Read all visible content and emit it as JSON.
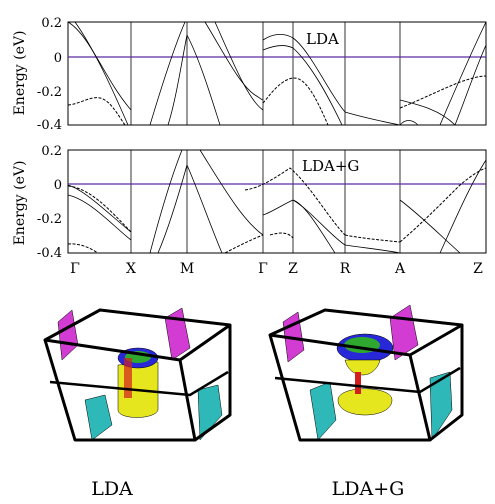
{
  "panels": [
    {
      "label": "LDA",
      "ylabel": "Energy (eV)",
      "yticks": [
        "0.2",
        "0",
        "-0.2",
        "-0.4"
      ]
    },
    {
      "label": "LDA+G",
      "ylabel": "Energy (eV)",
      "yticks": [
        "0.2",
        "0",
        "-0.2",
        "-0.4"
      ]
    }
  ],
  "kpath": [
    "Γ",
    "X",
    "M",
    "Γ",
    "Z",
    "R",
    "A",
    "Z"
  ],
  "fermi_color": "#5a2ca0",
  "fermi_surfaces": [
    {
      "caption": "LDA"
    },
    {
      "caption": "LDA+G"
    }
  ],
  "colors": {
    "magenta": "#d23cd2",
    "cyan": "#2fb8b8",
    "yellow": "#e6e61e",
    "blue": "#2828d8",
    "green": "#2ea82e",
    "red": "#d21e1e"
  }
}
